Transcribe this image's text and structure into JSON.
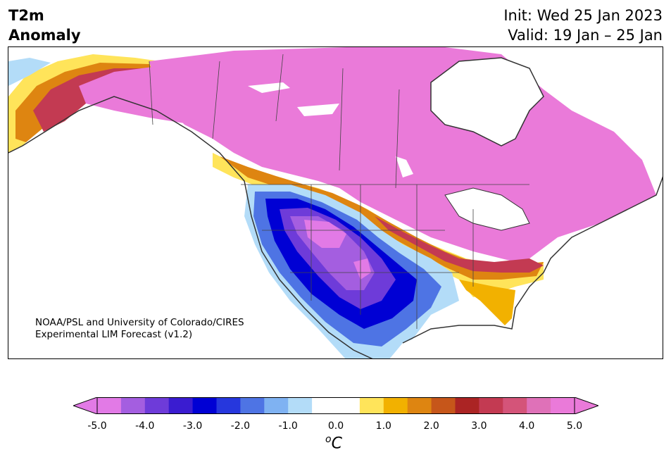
{
  "title": {
    "line1": "T2m",
    "line2": "Anomaly"
  },
  "header_right": {
    "init": "Init: Wed 25 Jan 2023",
    "valid": "Valid: 19 Jan – 25 Jan"
  },
  "credit": {
    "line1": "NOAA/PSL and University of Colorado/CIRES",
    "line2": "Experimental LIM Forecast (v1.2)"
  },
  "colorbar": {
    "unit_base": "C",
    "unit_sup": "o",
    "ticks": [
      "-5.0",
      "-4.0",
      "-3.0",
      "-2.0",
      "-1.0",
      "0.0",
      "1.0",
      "2.0",
      "3.0",
      "4.0",
      "5.0"
    ],
    "colors": [
      "#e27ae6",
      "#a45ee0",
      "#6e3bd9",
      "#3a1cd0",
      "#0000d4",
      "#2637dd",
      "#4e74e4",
      "#7fb2f2",
      "#b3dcf8",
      "#ffffff",
      "#ffffff",
      "#ffe45a",
      "#f2b100",
      "#de8511",
      "#c6561a",
      "#ab2424",
      "#c33a52",
      "#d45479",
      "#df71b8",
      "#ea7ad9"
    ],
    "under_color": "#e27ae6",
    "over_color": "#ea7ad9"
  },
  "map": {
    "coast_color": "#333333",
    "land_color": "#ffffff"
  }
}
